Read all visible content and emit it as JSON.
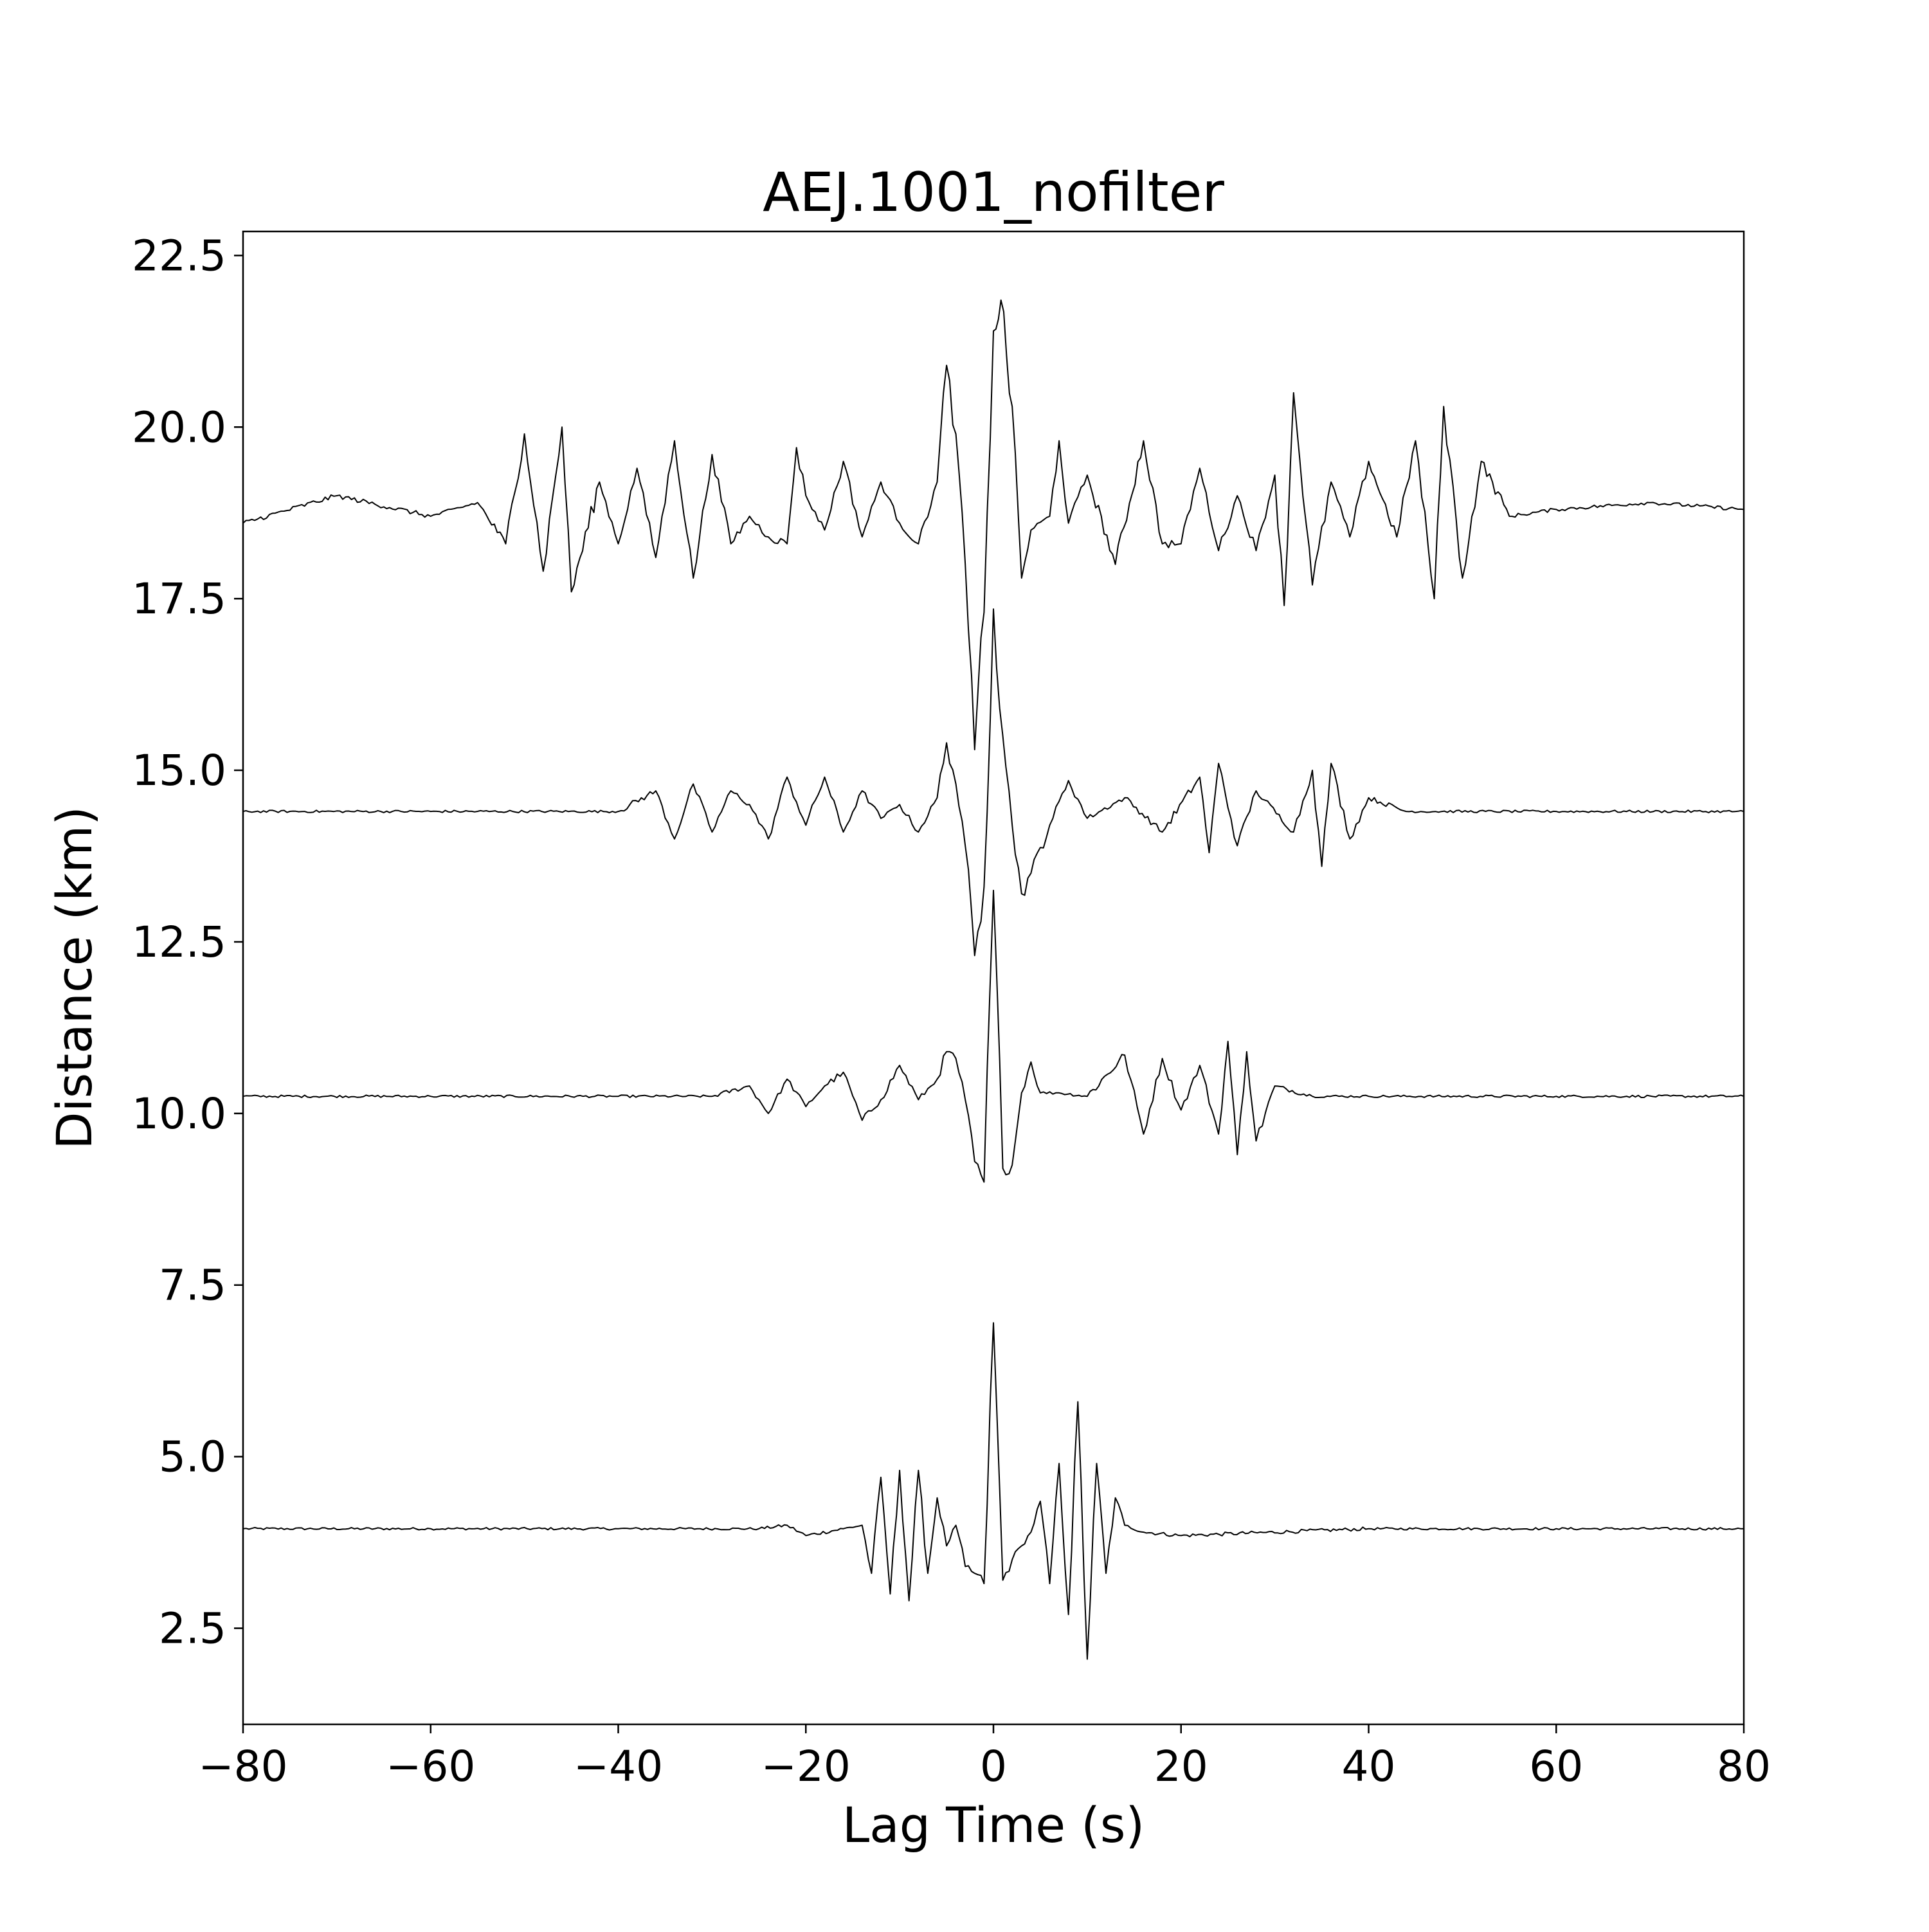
{
  "chart_data": {
    "type": "line",
    "title": "AEJ.1001_nofilter",
    "xlabel": "Lag Time (s)",
    "ylabel": "Distance (km)",
    "xlim": [
      -80,
      80
    ],
    "ylim": [
      1.1,
      22.85
    ],
    "xticks": [
      -80,
      -60,
      -40,
      -20,
      0,
      20,
      40,
      60,
      80
    ],
    "xtick_labels": [
      "−80",
      "−60",
      "−40",
      "−20",
      "0",
      "20",
      "40",
      "60",
      "80"
    ],
    "yticks": [
      2.5,
      5.0,
      7.5,
      10.0,
      12.5,
      15.0,
      17.5,
      20.0,
      22.5
    ],
    "ytick_labels": [
      "2.5",
      "5.0",
      "7.5",
      "10.0",
      "12.5",
      "15.0",
      "17.5",
      "20.0",
      "22.5"
    ],
    "grid": false,
    "line_color": "#000000",
    "series": [
      {
        "baseline_km": 3.95,
        "x": [
          -80,
          -60,
          -40,
          -25,
          -22,
          -20,
          -16,
          -14,
          -13,
          -12,
          -11,
          -10,
          -9,
          -8,
          -7,
          -6,
          -5,
          -4,
          -3,
          -2,
          -1,
          0,
          1,
          2,
          3,
          4,
          5,
          6,
          7,
          8,
          9,
          10,
          11,
          12,
          13,
          14,
          16,
          20,
          40,
          60,
          80
        ],
        "y": [
          3.95,
          3.95,
          3.95,
          3.95,
          4.0,
          3.85,
          3.95,
          4.0,
          3.3,
          4.7,
          3.0,
          4.8,
          2.9,
          4.8,
          3.3,
          4.4,
          3.7,
          4.0,
          3.4,
          3.3,
          3.15,
          6.95,
          3.2,
          3.5,
          3.7,
          3.9,
          4.35,
          3.15,
          4.9,
          2.7,
          5.8,
          2.05,
          4.9,
          3.3,
          4.4,
          4.0,
          3.9,
          3.85,
          3.95,
          3.95,
          3.95
        ]
      },
      {
        "baseline_km": 10.25,
        "x": [
          -80,
          -60,
          -40,
          -30,
          -26,
          -24,
          -22,
          -20,
          -18,
          -16,
          -14,
          -12,
          -10,
          -8,
          -6,
          -5,
          -4,
          -3,
          -2,
          -1,
          0,
          1,
          2,
          3,
          4,
          5,
          7,
          10,
          14,
          16,
          18,
          20,
          22,
          24,
          25,
          26,
          27,
          28,
          30,
          34,
          40,
          60,
          80
        ],
        "y": [
          10.25,
          10.25,
          10.25,
          10.25,
          10.4,
          10.0,
          10.5,
          10.1,
          10.4,
          10.6,
          9.9,
          10.2,
          10.7,
          10.2,
          10.5,
          10.9,
          10.8,
          10.2,
          9.3,
          9.0,
          13.25,
          9.2,
          9.25,
          10.3,
          10.75,
          10.3,
          10.3,
          10.25,
          10.85,
          9.7,
          10.8,
          10.05,
          10.7,
          9.7,
          11.05,
          9.4,
          10.9,
          9.6,
          10.4,
          10.25,
          10.25,
          10.25,
          10.25
        ]
      },
      {
        "baseline_km": 14.4,
        "x": [
          -80,
          -60,
          -40,
          -36,
          -34,
          -32,
          -30,
          -28,
          -26,
          -24,
          -22,
          -20,
          -18,
          -16,
          -14,
          -12,
          -10,
          -8,
          -6,
          -5,
          -4,
          -3,
          -2,
          -1,
          0,
          1,
          2,
          3,
          4,
          6,
          8,
          10,
          14,
          18,
          22,
          23,
          24,
          26,
          28,
          32,
          34,
          35,
          36,
          38,
          40,
          44,
          60,
          80
        ],
        "y": [
          14.4,
          14.4,
          14.4,
          14.7,
          14.0,
          14.8,
          14.1,
          14.7,
          14.5,
          14.0,
          14.9,
          14.2,
          14.9,
          14.1,
          14.7,
          14.3,
          14.5,
          14.1,
          14.6,
          15.4,
          14.8,
          13.9,
          12.3,
          13.3,
          17.35,
          15.5,
          14.2,
          13.2,
          13.5,
          14.2,
          14.85,
          14.3,
          14.6,
          14.1,
          14.9,
          13.8,
          15.1,
          13.9,
          14.7,
          14.1,
          15.0,
          13.6,
          15.1,
          14.0,
          14.6,
          14.4,
          14.4,
          14.4
        ]
      },
      {
        "baseline_km": 18.8,
        "x": [
          -80,
          -70,
          -60,
          -55,
          -52,
          -50,
          -48,
          -46,
          -45,
          -42,
          -40,
          -38,
          -36,
          -34,
          -32,
          -30,
          -28,
          -26,
          -24,
          -22,
          -21,
          -20,
          -18,
          -16,
          -14,
          -12,
          -10,
          -8,
          -6,
          -5,
          -4,
          -3,
          -2,
          -1,
          0,
          0.8,
          2,
          3,
          4,
          6,
          7,
          8,
          10,
          13,
          16,
          18,
          20,
          22,
          24,
          26,
          28,
          30,
          31,
          32,
          34,
          36,
          38,
          40,
          43,
          45,
          47,
          48,
          50,
          52,
          55,
          60,
          70,
          80
        ],
        "y": [
          18.6,
          19.0,
          18.7,
          18.9,
          18.3,
          19.9,
          17.9,
          20.0,
          17.6,
          19.2,
          18.3,
          19.4,
          18.1,
          19.8,
          17.8,
          19.6,
          18.3,
          18.7,
          18.4,
          18.3,
          19.7,
          19.0,
          18.5,
          19.5,
          18.4,
          19.2,
          18.6,
          18.3,
          19.2,
          20.9,
          19.9,
          18.0,
          15.3,
          17.3,
          21.4,
          21.85,
          20.3,
          17.8,
          18.5,
          18.7,
          19.8,
          18.6,
          19.3,
          18.0,
          19.8,
          18.3,
          18.3,
          19.4,
          18.2,
          19.0,
          18.2,
          19.3,
          17.4,
          20.5,
          17.7,
          19.2,
          18.4,
          19.5,
          18.4,
          19.8,
          17.5,
          20.3,
          17.8,
          19.5,
          18.7,
          18.8,
          18.9,
          18.8
        ]
      }
    ]
  }
}
